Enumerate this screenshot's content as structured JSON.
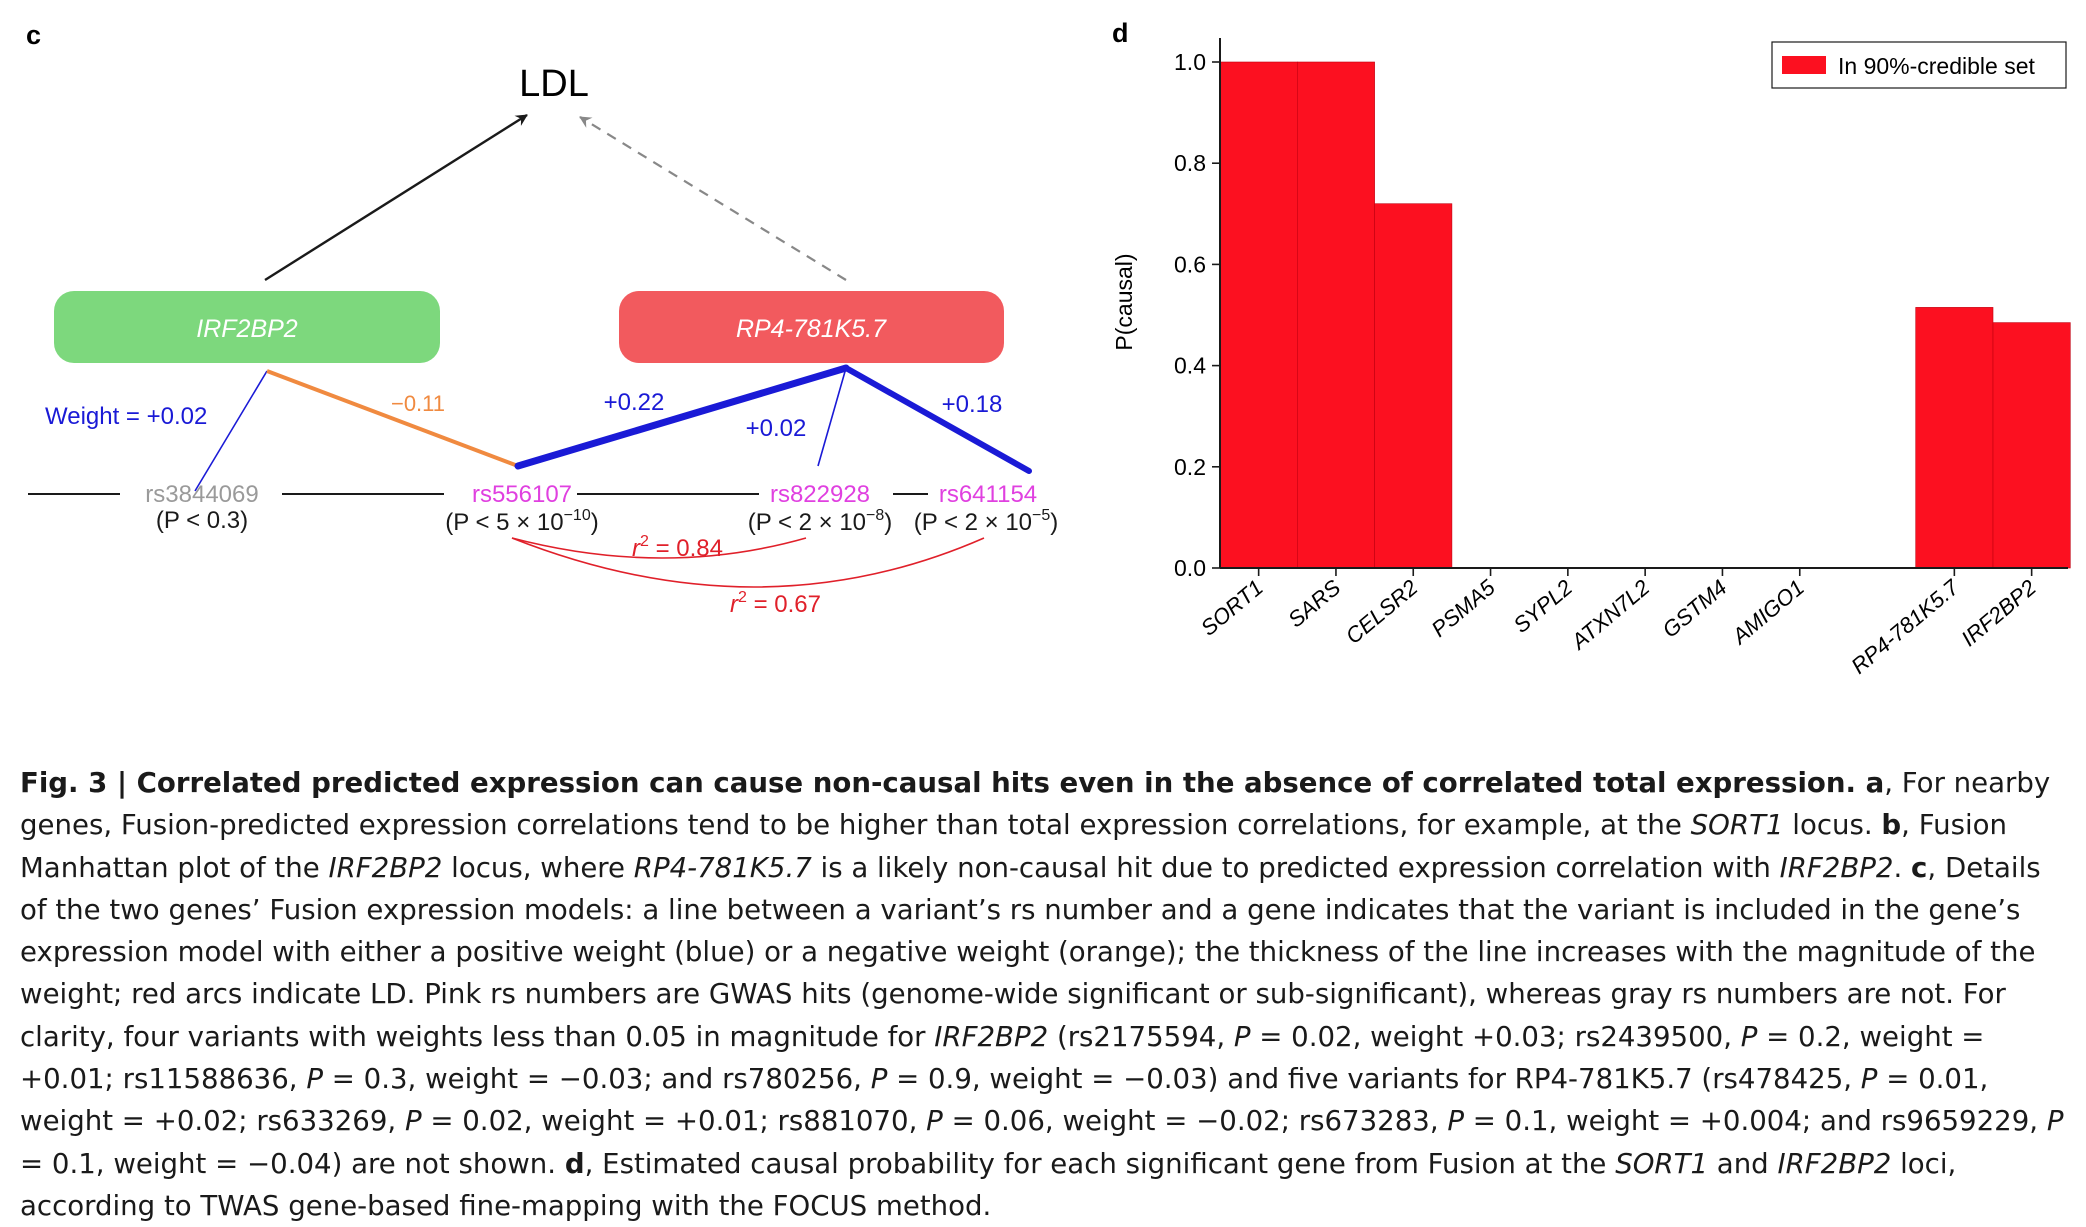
{
  "panel_c": {
    "letter": "c",
    "ldl_label": "LDL",
    "genes": [
      {
        "name": "IRF2BP2",
        "color": "#7dd87d"
      },
      {
        "name": "RP4-781K5.7",
        "color": "#f25a5e"
      }
    ],
    "snps": [
      {
        "rs": "rs3844069",
        "p_prefix": "(P < 0.3)",
        "p_exp": "",
        "p_suffix": "",
        "color": "#9a9a9a"
      },
      {
        "rs": "rs556107",
        "p_prefix": "(P < 5 × 10",
        "p_exp": "−10",
        "p_suffix": ")",
        "color": "#e040e0"
      },
      {
        "rs": "rs822928",
        "p_prefix": "(P < 2 × 10",
        "p_exp": "−8",
        "p_suffix": ")",
        "color": "#e040e0"
      },
      {
        "rs": "rs641154",
        "p_prefix": "(P < 2 × 10",
        "p_exp": "−5",
        "p_suffix": ")",
        "color": "#e040e0"
      }
    ],
    "weights": {
      "w1": "Weight = +0.02",
      "w2": "−0.11",
      "w3": "+0.22",
      "w4": "+0.02",
      "w5": "+0.18"
    },
    "ld": [
      {
        "label": "r",
        "sup": "2",
        "value": " = 0.84"
      },
      {
        "label": "r",
        "sup": "2",
        "value": " = 0.67"
      }
    ],
    "colors": {
      "positive": "#1a1ad6",
      "negative": "#f08a40",
      "ld": "#e0202a"
    }
  },
  "panel_d": {
    "letter": "d",
    "legend_label": "In 90%-credible set",
    "bar_color": "#fc1020"
  },
  "chart_data": {
    "type": "bar",
    "categories": [
      "SORT1",
      "SARS",
      "CELSR2",
      "PSMA5",
      "SYPL2",
      "ATXN7L2",
      "GSTM4",
      "AMIGO1",
      "RP4-781K5.7",
      "IRF2BP2"
    ],
    "values": [
      1.0,
      1.0,
      0.72,
      0.0,
      0.0,
      0.0,
      0.0,
      0.0,
      0.515,
      0.485
    ],
    "series": [
      {
        "name": "In 90%-credible set"
      }
    ],
    "title": "",
    "xlabel": "",
    "ylabel": "P(causal)",
    "ylim": [
      0,
      1.0
    ],
    "yticks": [
      "0.0",
      "0.2",
      "0.4",
      "0.6",
      "0.8",
      "1.0"
    ],
    "grid": false,
    "legend": "top-right"
  },
  "caption": {
    "fig_label": "Fig. 3 | ",
    "title": "Correlated predicted expression can cause non-causal hits even in the absence of correlated total expression.",
    "t01": " a",
    "t02": ", For nearby genes, Fusion-predicted expression correlations tend to be higher than total expression correlations, for example, at the ",
    "t03": "SORT1",
    "t04": " locus. ",
    "t05": "b",
    "t06": ", Fusion Manhattan plot of the ",
    "t07": "IRF2BP2",
    "t08": " locus, where ",
    "t09": "RP4-781K5.7",
    "t10": " is a likely non-causal hit due to predicted expression correlation with ",
    "t11": "IRF2BP2",
    "t12": ". ",
    "t13": "c",
    "t14": ", Details of the two genes’ Fusion expression models: a line between a variant’s rs number and a gene indicates that the variant is included in the gene’s expression model with either a positive weight (blue) or a negative weight (orange); the thickness of the line increases with the magnitude of the weight; red arcs indicate LD. Pink rs numbers are GWAS hits (genome-wide significant or sub-significant), whereas gray rs numbers are not. For clarity, four variants with weights less than 0.05 in magnitude for ",
    "t15": "IRF2BP2",
    "t16": " (rs2175594, ",
    "t17": "P",
    "t18": " = 0.02, weight +0.03; rs2439500, ",
    "t19": "P",
    "t20": " = 0.2, weight = +0.01; rs11588636, ",
    "t21": "P",
    "t22": " = 0.3, weight = −0.03; and rs780256, ",
    "t23": "P",
    "t24": " = 0.9, weight = −0.03) and five variants for RP4-781K5.7 (rs478425, ",
    "t25": "P",
    "t26": " = 0.01, weight = +0.02; rs633269, ",
    "t27": "P",
    "t28": " = 0.02, weight = +0.01; rs881070, ",
    "t29": "P",
    "t30": " = 0.06, weight = −0.02; rs673283, ",
    "t31": "P",
    "t32": " = 0.1, weight = +0.004; and rs9659229, ",
    "t33": "P",
    "t34": " = 0.1, weight = −0.04) are not shown. ",
    "t35": "d",
    "t36": ", Estimated causal probability for each significant gene from Fusion at the ",
    "t37": "SORT1",
    "t38": " and ",
    "t39": "IRF2BP2",
    "t40": " loci, according to TWAS gene-based fine-mapping with the FOCUS method."
  }
}
